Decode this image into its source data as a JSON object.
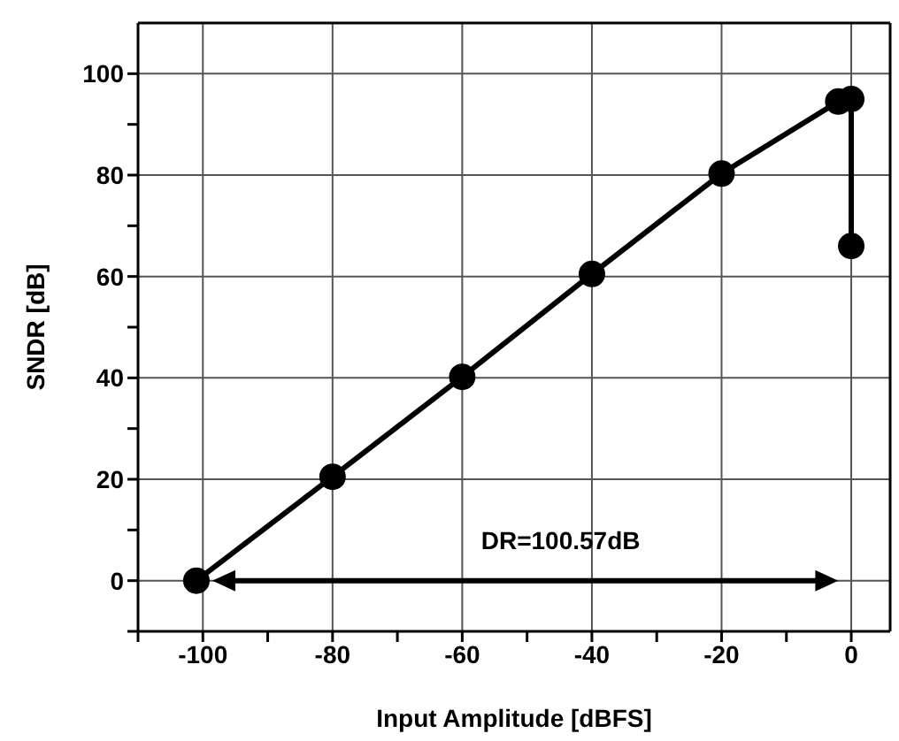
{
  "chart_data": {
    "type": "line",
    "xlabel": "Input Amplitude [dBFS]",
    "ylabel": "SNDR [dB]",
    "x": [
      -101,
      -80,
      -60,
      -40,
      -20,
      -2,
      0,
      0
    ],
    "series": [
      {
        "color": "#000000",
        "values": [
          0,
          20.5,
          40.2,
          60.5,
          80.3,
          94.5,
          95,
          66
        ]
      }
    ],
    "xlim": [
      -110,
      6
    ],
    "xticks": [
      {
        "value": -110,
        "label": null
      },
      -100,
      {
        "value": -90,
        "label": null
      },
      -80,
      {
        "value": -70,
        "label": null
      },
      -60,
      {
        "value": -50,
        "label": null
      },
      -40,
      {
        "value": -30,
        "label": null
      },
      -20,
      {
        "value": -10,
        "label": null
      },
      0
    ],
    "ylim": [
      -10,
      110
    ],
    "yticks": [
      {
        "value": -10,
        "label": null
      },
      0,
      {
        "value": 10,
        "label": null
      },
      20,
      {
        "value": 30,
        "label": null
      },
      40,
      {
        "value": 50,
        "label": null
      },
      60,
      {
        "value": 70,
        "label": null
      },
      80,
      {
        "value": 90,
        "label": null
      },
      100
    ],
    "annotations": [
      "DR=100.57dB"
    ],
    "grid": true,
    "legend": false,
    "marker": "circle",
    "line_style": "solid"
  }
}
